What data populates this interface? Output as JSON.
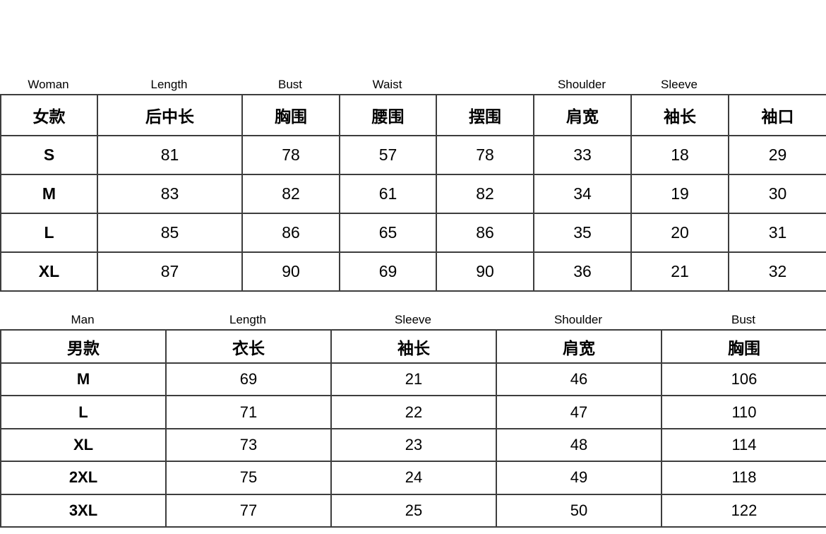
{
  "colors": {
    "background": "#ffffff",
    "border": "#3d3d3d",
    "text": "#000000"
  },
  "chart_data": [
    {
      "type": "table",
      "en_labels": [
        "Woman",
        "Length",
        "Bust",
        "Waist",
        "",
        "Shoulder",
        "Sleeve",
        ""
      ],
      "header": [
        "女款",
        "后中长",
        "胸围",
        "腰围",
        "摆围",
        "肩宽",
        "袖长",
        "袖口"
      ],
      "rows": [
        {
          "size": "S",
          "values": [
            81,
            78,
            57,
            78,
            33,
            18,
            29
          ]
        },
        {
          "size": "M",
          "values": [
            83,
            82,
            61,
            82,
            34,
            19,
            30
          ]
        },
        {
          "size": "L",
          "values": [
            85,
            86,
            65,
            86,
            35,
            20,
            31
          ]
        },
        {
          "size": "XL",
          "values": [
            87,
            90,
            69,
            90,
            36,
            21,
            32
          ]
        }
      ]
    },
    {
      "type": "table",
      "en_labels": [
        "Man",
        "Length",
        "Sleeve",
        "Shoulder",
        "Bust"
      ],
      "header": [
        "男款",
        "衣长",
        "袖长",
        "肩宽",
        "胸围"
      ],
      "rows": [
        {
          "size": "M",
          "values": [
            69,
            21,
            46,
            106
          ]
        },
        {
          "size": "L",
          "values": [
            71,
            22,
            47,
            110
          ]
        },
        {
          "size": "XL",
          "values": [
            73,
            23,
            48,
            114
          ]
        },
        {
          "size": "2XL",
          "values": [
            75,
            24,
            49,
            118
          ]
        },
        {
          "size": "3XL",
          "values": [
            77,
            25,
            50,
            122
          ]
        }
      ]
    }
  ]
}
